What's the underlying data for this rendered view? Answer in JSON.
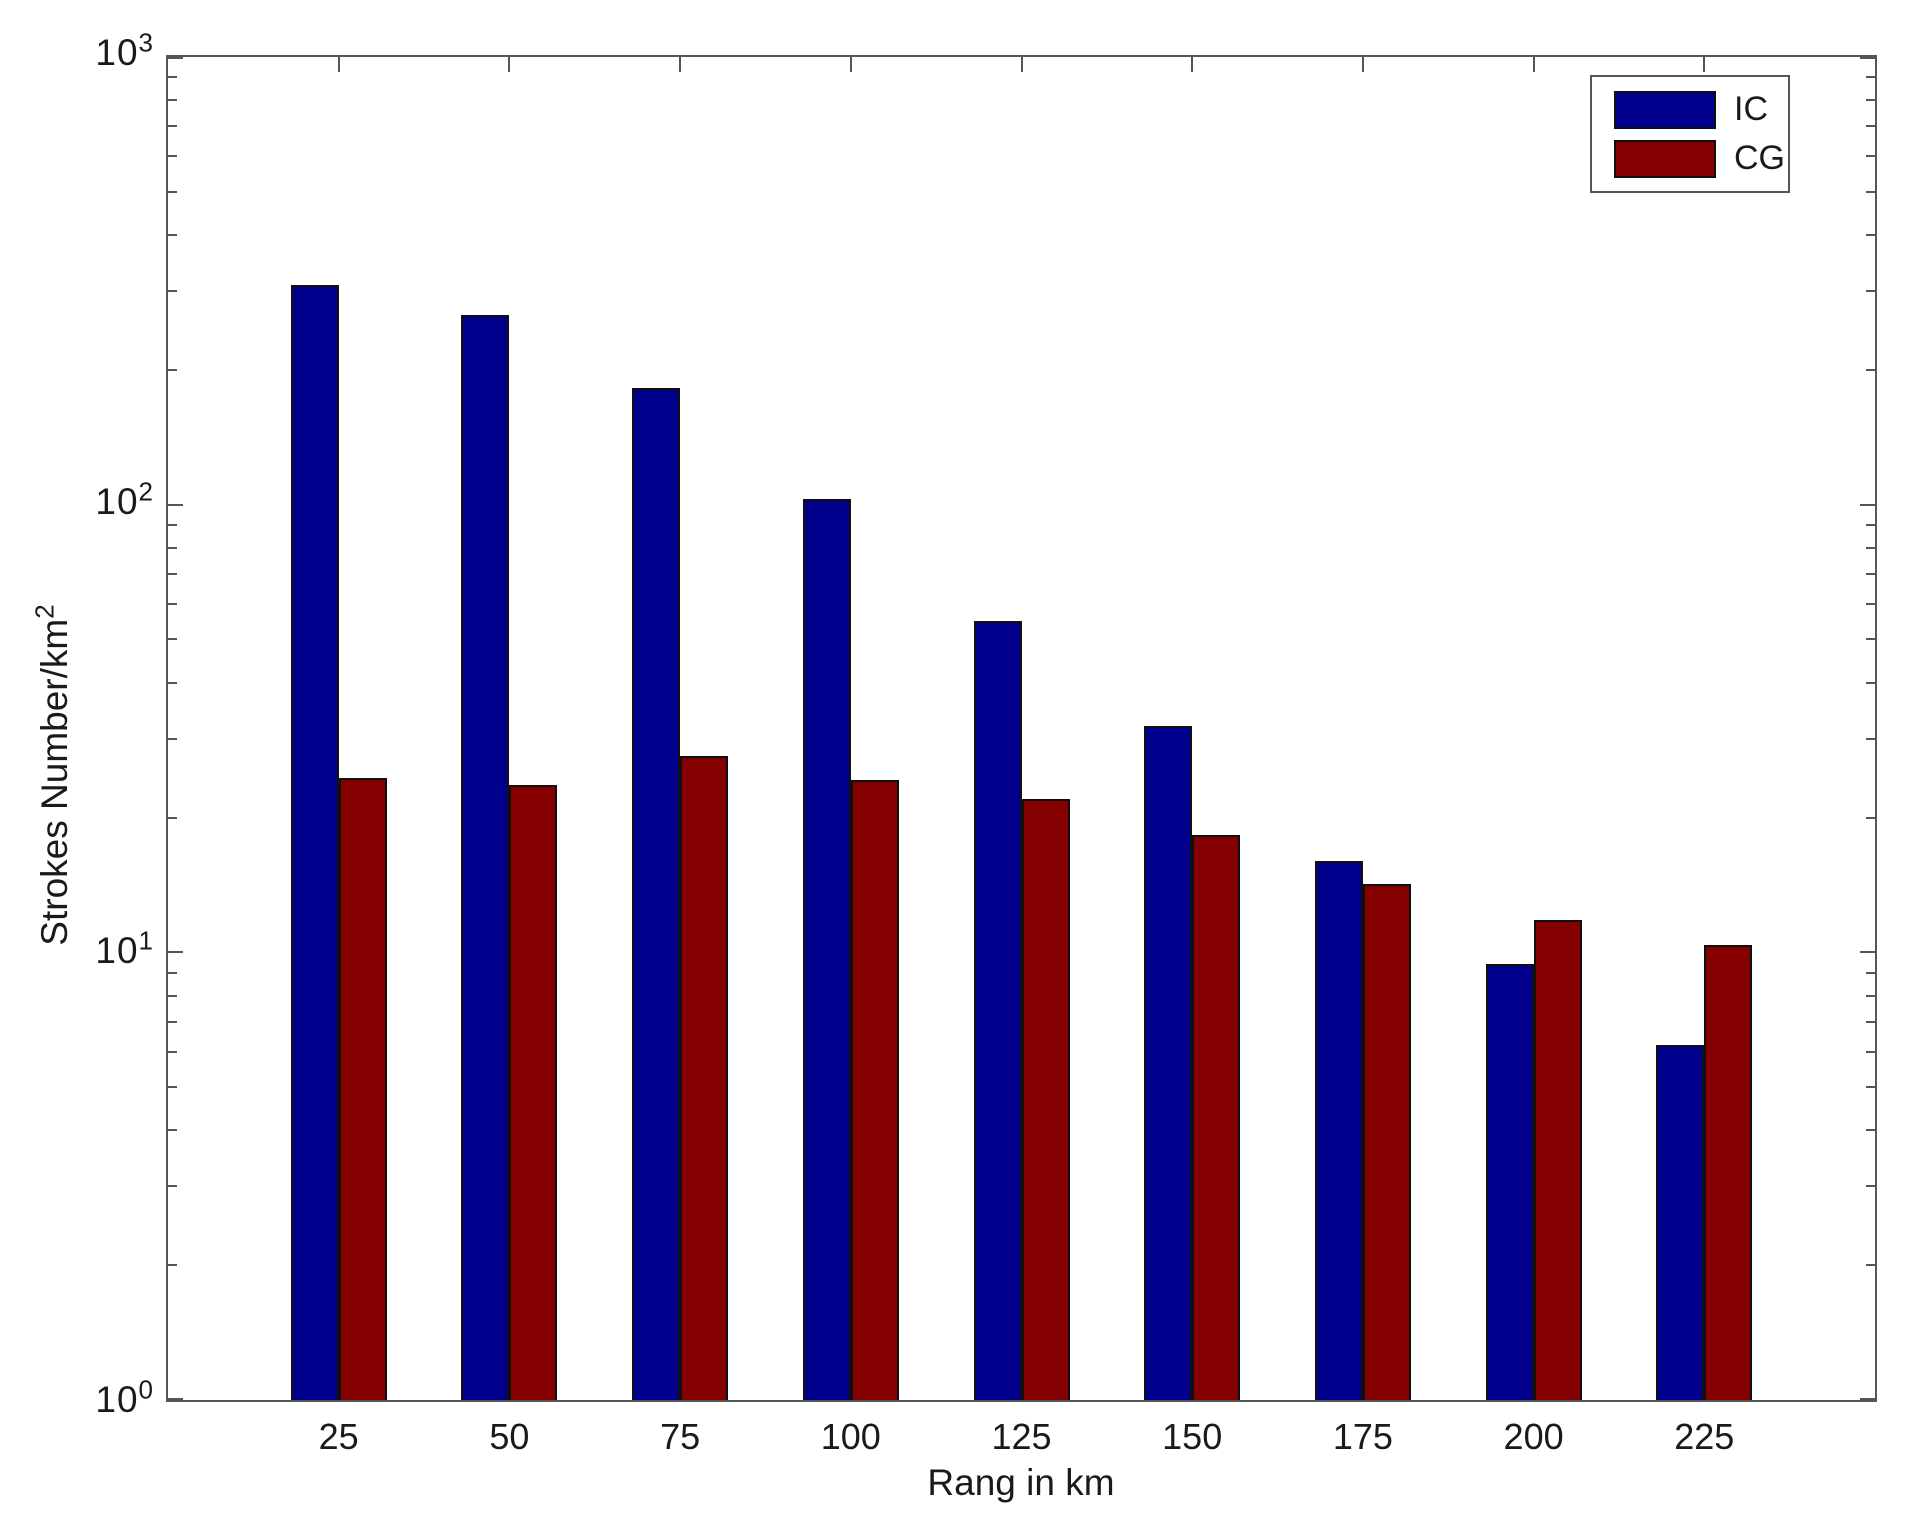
{
  "chart_data": {
    "type": "bar",
    "title": "",
    "xlabel": "Rang in km",
    "ylabel": "Strokes Number/km^2",
    "ylabel_base": "Strokes Number/km",
    "ylabel_exponent": "2",
    "yscale": "log",
    "ylim": [
      1,
      1000
    ],
    "grid": false,
    "legend_position": "top-right",
    "categories": [
      25,
      50,
      75,
      100,
      125,
      150,
      175,
      200,
      225
    ],
    "series": [
      {
        "name": "IC",
        "color": "#00008C",
        "values": [
          310,
          265,
          182,
          103,
          55,
          32,
          16,
          9.4,
          6.2
        ]
      },
      {
        "name": "CG",
        "color": "#850000",
        "values": [
          24.5,
          23.7,
          27.5,
          24.3,
          22,
          18.3,
          14.2,
          11.8,
          10.4
        ]
      }
    ],
    "yticks": [
      {
        "base": "10",
        "exp": "3"
      },
      {
        "base": "10",
        "exp": "2"
      },
      {
        "base": "10",
        "exp": "1"
      },
      {
        "base": "10",
        "exp": "0"
      }
    ]
  }
}
